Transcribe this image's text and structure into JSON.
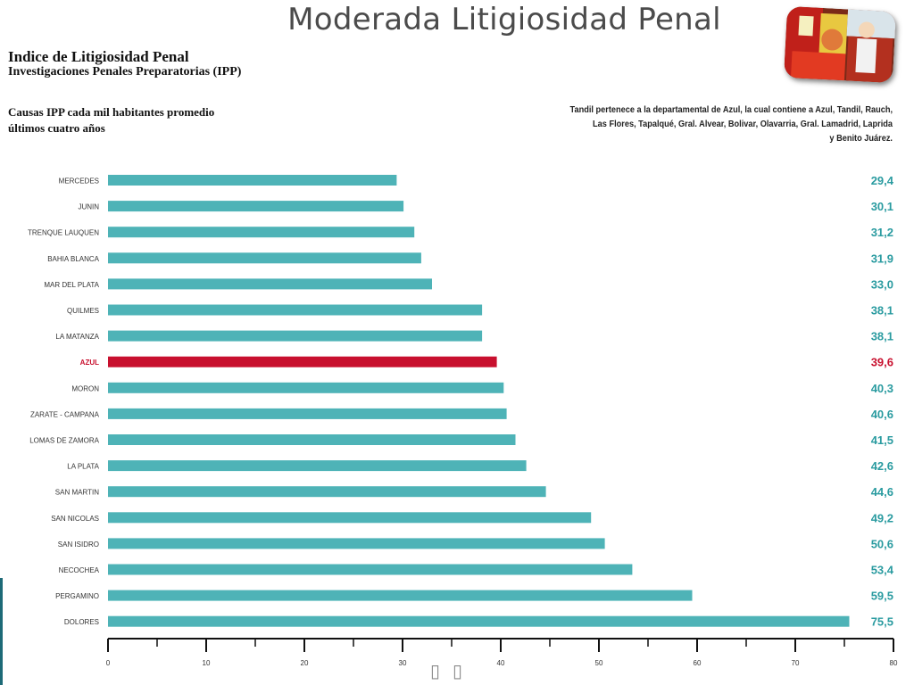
{
  "slide": {
    "title": "Moderada Litigiosidad Penal"
  },
  "chart_data": {
    "type": "bar",
    "orientation": "horizontal",
    "title": "Indice de Litigiosidad Penal",
    "subtitle": "Investigaciones Penales Preparatorias (IPP)",
    "ylabel": "Causas IPP cada mil habitantes promedio\núltimos cuatro años",
    "note_lines": [
      "Tandil pertenece a la departamental de Azul, la cual contiene a Azul, Tandil, Rauch,",
      "Las Flores, Tapalqué, Gral. Alvear, Bolivar, Olavarria, Gral. Lamadrid, Laprida",
      "y Benito Juárez."
    ],
    "categories": [
      "MERCEDES",
      "JUNIN",
      "TRENQUE LAUQUEN",
      "BAHIA BLANCA",
      "MAR DEL PLATA",
      "QUILMES",
      "LA MATANZA",
      "AZUL",
      "MORON",
      "ZARATE - CAMPANA",
      "LOMAS DE ZAMORA",
      "LA PLATA",
      "SAN MARTIN",
      "SAN NICOLAS",
      "SAN ISIDRO",
      "NECOCHEA",
      "PERGAMINO",
      "DOLORES"
    ],
    "values": [
      29.4,
      30.1,
      31.2,
      31.9,
      33.0,
      38.1,
      38.1,
      39.6,
      40.3,
      40.6,
      41.5,
      42.6,
      44.6,
      49.2,
      50.6,
      53.4,
      59.5,
      75.5
    ],
    "value_labels": [
      "29,4",
      "30,1",
      "31,2",
      "31,9",
      "33,0",
      "38,1",
      "38,1",
      "39,6",
      "40,3",
      "40,6",
      "41,5",
      "42,6",
      "44,6",
      "49,2",
      "50,6",
      "53,4",
      "59,5",
      "75,5"
    ],
    "highlight": "AZUL",
    "xlim": [
      0,
      80
    ],
    "xticks": [
      0,
      10,
      20,
      30,
      40,
      50,
      60,
      70,
      80
    ],
    "minor_ticks": [
      5,
      15,
      25,
      35,
      45,
      55,
      65,
      75
    ],
    "grid": false,
    "colors": {
      "bar": "#4eb3b7",
      "highlight": "#c8102e",
      "value_text": "#2a9ba0",
      "highlight_text": "#c8102e"
    }
  },
  "icons": {
    "photo": "market-photo",
    "nav": [
      "nav-prev-icon",
      "nav-next-icon"
    ]
  }
}
